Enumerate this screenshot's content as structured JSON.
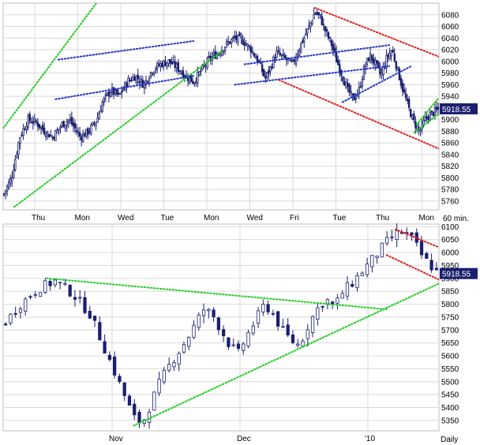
{
  "colors": {
    "background": "#ffffff",
    "grid": "#d9d9d9",
    "candle": "#1a1f6e",
    "trend_green": "#22cc22",
    "trend_blue": "#2233cc",
    "trend_red": "#e02020",
    "badge": "#1a1f6e"
  },
  "chart_data": [
    {
      "id": "intraday",
      "type": "candlestick",
      "timeframe_label": "60 min.",
      "last_value_label": "5918.55",
      "ylim": [
        5745,
        6100
      ],
      "y_ticks": [
        5760,
        5780,
        5800,
        5820,
        5840,
        5860,
        5880,
        5900,
        5920,
        5940,
        5960,
        5980,
        6000,
        6020,
        6040,
        6060,
        6080
      ],
      "x_labels": [
        "Thu",
        "Mon",
        "Wed",
        "Tue",
        "Mon",
        "Wed",
        "Fri",
        "Tue",
        "Thu",
        "Mon"
      ],
      "grid": true,
      "price_path": [
        [
          0,
          5770
        ],
        [
          6,
          5800
        ],
        [
          12,
          5870
        ],
        [
          18,
          5900
        ],
        [
          24,
          5895
        ],
        [
          30,
          5880
        ],
        [
          36,
          5870
        ],
        [
          42,
          5890
        ],
        [
          48,
          5900
        ],
        [
          56,
          5870
        ],
        [
          62,
          5880
        ],
        [
          68,
          5900
        ],
        [
          72,
          5930
        ],
        [
          78,
          5950
        ],
        [
          84,
          5940
        ],
        [
          90,
          5965
        ],
        [
          96,
          5975
        ],
        [
          102,
          5960
        ],
        [
          108,
          5985
        ],
        [
          114,
          5995
        ],
        [
          120,
          6000
        ],
        [
          126,
          5990
        ],
        [
          132,
          5975
        ],
        [
          138,
          5965
        ],
        [
          144,
          5985
        ],
        [
          150,
          6005
        ],
        [
          156,
          6015
        ],
        [
          162,
          6030
        ],
        [
          168,
          6040
        ],
        [
          174,
          6035
        ],
        [
          180,
          6020
        ],
        [
          186,
          5995
        ],
        [
          190,
          5970
        ],
        [
          194,
          5990
        ],
        [
          198,
          6015
        ],
        [
          204,
          6005
        ],
        [
          210,
          5995
        ],
        [
          216,
          6030
        ],
        [
          222,
          6060
        ],
        [
          226,
          6085
        ],
        [
          230,
          6075
        ],
        [
          234,
          6050
        ],
        [
          238,
          6030
        ],
        [
          242,
          6000
        ],
        [
          246,
          5975
        ],
        [
          250,
          5950
        ],
        [
          254,
          5935
        ],
        [
          258,
          5950
        ],
        [
          262,
          5990
        ],
        [
          266,
          6010
        ],
        [
          270,
          5995
        ],
        [
          274,
          5975
        ],
        [
          278,
          6005
        ],
        [
          282,
          6020
        ],
        [
          286,
          5985
        ],
        [
          290,
          5950
        ],
        [
          294,
          5920
        ],
        [
          298,
          5895
        ],
        [
          302,
          5880
        ],
        [
          306,
          5900
        ],
        [
          310,
          5910
        ],
        [
          314,
          5915
        ],
        [
          316,
          5918
        ]
      ],
      "trendlines": [
        {
          "color": "green",
          "points": [
            [
              0,
              5885
            ],
            [
              70,
              6108
            ]
          ]
        },
        {
          "color": "green",
          "points": [
            [
              8,
              5750
            ],
            [
              160,
              6020
            ]
          ]
        },
        {
          "color": "blue",
          "points": [
            [
              40,
              6003
            ],
            [
              138,
              6035
            ]
          ]
        },
        {
          "color": "blue",
          "points": [
            [
              38,
              5935
            ],
            [
              138,
              5975
            ]
          ]
        },
        {
          "color": "blue",
          "points": [
            [
              175,
              5995
            ],
            [
              280,
              6028
            ]
          ]
        },
        {
          "color": "blue",
          "points": [
            [
              168,
              5960
            ],
            [
              280,
              5992
            ]
          ]
        },
        {
          "color": "blue",
          "points": [
            [
              246,
              5930
            ],
            [
              296,
              5992
            ]
          ]
        },
        {
          "color": "red",
          "points": [
            [
              226,
              6092
            ],
            [
              316,
              6008
            ]
          ]
        },
        {
          "color": "red",
          "points": [
            [
              200,
              5968
            ],
            [
              316,
              5850
            ]
          ]
        },
        {
          "color": "green",
          "points": [
            [
              298,
              5878
            ],
            [
              316,
              5910
            ]
          ]
        },
        {
          "color": "green",
          "points": [
            [
              300,
              5892
            ],
            [
              316,
              5938
            ]
          ]
        }
      ]
    },
    {
      "id": "daily",
      "type": "candlestick",
      "timeframe_label": "Daily",
      "last_value_label": "5918.55",
      "ylim": [
        5310,
        6110
      ],
      "y_ticks": [
        5350,
        5400,
        5450,
        5500,
        5550,
        5600,
        5650,
        5700,
        5750,
        5800,
        5850,
        5900,
        5950,
        6000,
        6050,
        6100
      ],
      "x_labels": [
        "Nov",
        "Dec",
        "'10"
      ],
      "grid": true,
      "price_path": [
        [
          0,
          5720
        ],
        [
          4,
          5800
        ],
        [
          8,
          5860
        ],
        [
          12,
          5890
        ],
        [
          16,
          5840
        ],
        [
          20,
          5760
        ],
        [
          22,
          5680
        ],
        [
          24,
          5600
        ],
        [
          26,
          5520
        ],
        [
          28,
          5440
        ],
        [
          30,
          5360
        ],
        [
          32,
          5340
        ],
        [
          34,
          5420
        ],
        [
          36,
          5500
        ],
        [
          38,
          5560
        ],
        [
          40,
          5610
        ],
        [
          42,
          5660
        ],
        [
          44,
          5720
        ],
        [
          46,
          5780
        ],
        [
          48,
          5760
        ],
        [
          50,
          5700
        ],
        [
          52,
          5640
        ],
        [
          54,
          5610
        ],
        [
          56,
          5680
        ],
        [
          58,
          5740
        ],
        [
          60,
          5800
        ],
        [
          62,
          5760
        ],
        [
          64,
          5700
        ],
        [
          66,
          5660
        ],
        [
          68,
          5640
        ],
        [
          70,
          5720
        ],
        [
          72,
          5780
        ],
        [
          74,
          5820
        ],
        [
          76,
          5790
        ],
        [
          78,
          5850
        ],
        [
          80,
          5880
        ],
        [
          82,
          5920
        ],
        [
          84,
          5960
        ],
        [
          86,
          6000
        ],
        [
          88,
          6040
        ],
        [
          90,
          6070
        ],
        [
          92,
          6080
        ],
        [
          94,
          6050
        ],
        [
          96,
          5990
        ],
        [
          98,
          5950
        ],
        [
          100,
          5918
        ]
      ],
      "trendlines": [
        {
          "color": "green",
          "points": [
            [
              10,
              5900
            ],
            [
              88,
              5780
            ]
          ]
        },
        {
          "color": "green",
          "points": [
            [
              30,
              5330
            ],
            [
              100,
              5880
            ]
          ]
        },
        {
          "color": "red",
          "points": [
            [
              90,
              6090
            ],
            [
              100,
              6020
            ]
          ]
        },
        {
          "color": "red",
          "points": [
            [
              88,
              5990
            ],
            [
              100,
              5895
            ]
          ]
        }
      ]
    }
  ]
}
